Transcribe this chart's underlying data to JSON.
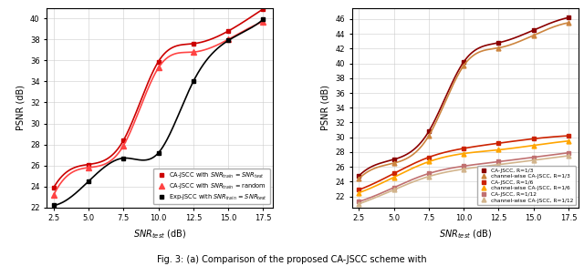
{
  "fig_width": 6.4,
  "fig_height": 2.92,
  "plot_a": {
    "snr_x": [
      2.5,
      5.0,
      7.5,
      10.0,
      12.5,
      15.0,
      17.5
    ],
    "ca_jscc_match": [
      23.9,
      26.1,
      28.4,
      35.9,
      37.6,
      38.8,
      40.9
    ],
    "ca_jscc_random": [
      23.2,
      25.8,
      27.9,
      35.3,
      36.8,
      38.0,
      39.7
    ],
    "exp_jscc_match": [
      22.2,
      24.5,
      26.7,
      27.2,
      34.0,
      37.9,
      39.9
    ],
    "color_ca_match": "#cc0000",
    "color_ca_random": "#ff4444",
    "color_exp": "#000000",
    "legend": [
      "CA-JSCC with $SNR_{train}$ = $SNR_{test}$",
      "CA-JSCC with $SNR_{train}$ = random",
      "Exp-JSCC with $SNR_{train}$ = $SNR_{test}$"
    ],
    "ylim": [
      22,
      41
    ],
    "yticks": [
      22,
      24,
      26,
      28,
      30,
      32,
      34,
      36,
      38,
      40
    ],
    "xlim": [
      2.0,
      18.2
    ],
    "xticks": [
      2.5,
      5.0,
      7.5,
      10.0,
      12.5,
      15.0,
      17.5
    ]
  },
  "plot_b": {
    "snr_x": [
      2.5,
      5.0,
      7.5,
      10.0,
      12.5,
      15.0,
      17.5
    ],
    "ca_jscc_r13": [
      24.8,
      27.0,
      30.8,
      40.2,
      42.8,
      44.5,
      46.2
    ],
    "cw_ca_jscc_r13": [
      24.4,
      26.5,
      30.2,
      39.7,
      42.1,
      43.8,
      45.5
    ],
    "ca_jscc_r16": [
      22.9,
      25.1,
      27.3,
      28.5,
      29.2,
      29.8,
      30.2
    ],
    "cw_ca_jscc_r16": [
      22.5,
      24.6,
      26.7,
      27.8,
      28.3,
      28.9,
      29.5
    ],
    "ca_jscc_r112": [
      21.3,
      23.2,
      25.1,
      26.1,
      26.7,
      27.3,
      27.9
    ],
    "cw_ca_jscc_r112": [
      21.0,
      22.9,
      24.7,
      25.7,
      26.3,
      26.9,
      27.5
    ],
    "color_ca_r13": "#8b0000",
    "color_cw_r13": "#cd853f",
    "color_ca_r16": "#cc2200",
    "color_cw_r16": "#ffa500",
    "color_ca_r112": "#c07070",
    "color_cw_r112": "#d2b48c",
    "legend": [
      "CA-JSCC, R=1/3",
      "channel-wise CA-JSCC, R=1/3",
      "CA-JSCC, R=1/6",
      "channel-wise CA-JSCC, R=1/6",
      "CA-JSCC, R=1/12",
      "channel-wise CA-JSCC, R=1/12"
    ],
    "ylim": [
      20.5,
      47.5
    ],
    "yticks": [
      22,
      24,
      26,
      28,
      30,
      32,
      34,
      36,
      38,
      40,
      42,
      44,
      46
    ],
    "xlim": [
      2.0,
      18.2
    ],
    "xticks": [
      2.5,
      5.0,
      7.5,
      10.0,
      12.5,
      15.0,
      17.5
    ]
  },
  "caption": "Fig. 3: (a) Comparison of the proposed CA-JSCC scheme with"
}
